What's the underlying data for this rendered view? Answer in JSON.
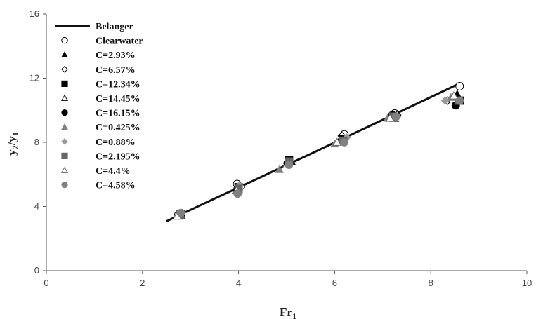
{
  "chart_data": {
    "type": "scatter",
    "xlabel": "Fr1",
    "ylabel": "y2/y1",
    "xlim": [
      0,
      10
    ],
    "ylim": [
      0,
      16
    ],
    "xticks": [
      "0",
      "2",
      "4",
      "6",
      "8",
      "10"
    ],
    "yticks": [
      "0",
      "4",
      "8",
      "12",
      "16"
    ],
    "grid": false,
    "legend_position": "top-left",
    "line": {
      "name": "Belanger",
      "x": [
        2.5,
        2.75,
        3.0,
        3.5,
        4.0,
        4.5,
        5.0,
        5.5,
        6.0,
        6.5,
        7.0,
        7.5,
        8.0,
        8.5,
        8.6
      ],
      "y": [
        3.08,
        3.44,
        3.79,
        4.49,
        5.18,
        5.88,
        6.59,
        7.28,
        7.99,
        8.7,
        9.4,
        10.11,
        10.82,
        11.53,
        11.67
      ]
    },
    "series": [
      {
        "name": "Clearwater",
        "marker": "circle-open",
        "color": "#000000",
        "x": [
          2.75,
          3.97,
          5.05,
          6.2,
          7.25,
          8.6
        ],
        "y": [
          3.5,
          5.4,
          6.9,
          8.5,
          9.8,
          11.5
        ]
      },
      {
        "name": "C=2.93%",
        "marker": "triangle-filled",
        "color": "#000000",
        "x": [
          2.8,
          4.0,
          5.1,
          6.15,
          7.2,
          8.55
        ],
        "y": [
          3.5,
          5.1,
          6.8,
          8.3,
          9.6,
          11.0
        ]
      },
      {
        "name": "C=6.57%",
        "marker": "diamond-open",
        "color": "#000000",
        "x": [
          2.78,
          4.05,
          5.05,
          6.15,
          7.3,
          8.35
        ],
        "y": [
          3.5,
          5.2,
          6.7,
          8.4,
          9.7,
          10.6
        ]
      },
      {
        "name": "C=12.34%",
        "marker": "square-filled",
        "color": "#000000",
        "x": [
          2.8,
          4.0,
          5.05,
          6.18,
          7.22,
          8.6
        ],
        "y": [
          3.5,
          5.2,
          6.9,
          8.2,
          9.6,
          10.6
        ]
      },
      {
        "name": "C=14.45%",
        "marker": "triangle-open",
        "color": "#000000",
        "x": [
          2.75,
          3.95,
          5.0,
          6.1,
          7.25,
          8.45
        ],
        "y": [
          3.4,
          5.0,
          6.6,
          8.1,
          9.5,
          10.7
        ]
      },
      {
        "name": "C=16.15%",
        "marker": "circle-filled",
        "color": "#000000",
        "x": [
          2.78,
          3.98,
          5.02,
          6.2,
          7.2,
          8.52
        ],
        "y": [
          3.5,
          5.1,
          6.7,
          8.2,
          9.7,
          10.3
        ]
      },
      {
        "name": "C=0.425%",
        "marker": "triangle-filled",
        "color": "#808080",
        "x": [
          2.8,
          4.0,
          4.85,
          6.0,
          7.1,
          8.42
        ],
        "y": [
          3.5,
          5.0,
          6.3,
          7.9,
          9.5,
          10.8
        ]
      },
      {
        "name": "C=0.88%",
        "marker": "diamond-filled",
        "color": "#9a9a9a",
        "x": [
          2.82,
          4.02,
          5.05,
          6.25,
          7.3,
          8.3
        ],
        "y": [
          3.6,
          5.3,
          6.8,
          8.3,
          9.6,
          10.6
        ]
      },
      {
        "name": "C=2.195%",
        "marker": "square-filled",
        "color": "#666666",
        "x": [
          2.78,
          4.0,
          5.05,
          6.18,
          7.22,
          8.58
        ],
        "y": [
          3.5,
          5.1,
          6.8,
          8.1,
          9.6,
          10.6
        ]
      },
      {
        "name": "C=4.4%",
        "marker": "triangle-open",
        "color": "#666666",
        "x": [
          2.72,
          3.96,
          5.0,
          6.05,
          7.15,
          8.48
        ],
        "y": [
          3.4,
          5.0,
          6.6,
          8.0,
          9.5,
          10.9
        ]
      },
      {
        "name": "C=4.58%",
        "marker": "circle-filled",
        "color": "#808080",
        "x": [
          2.8,
          3.98,
          5.05,
          6.2,
          7.28,
          8.6
        ],
        "y": [
          3.6,
          4.8,
          6.6,
          8.0,
          9.6,
          10.6
        ]
      }
    ]
  }
}
